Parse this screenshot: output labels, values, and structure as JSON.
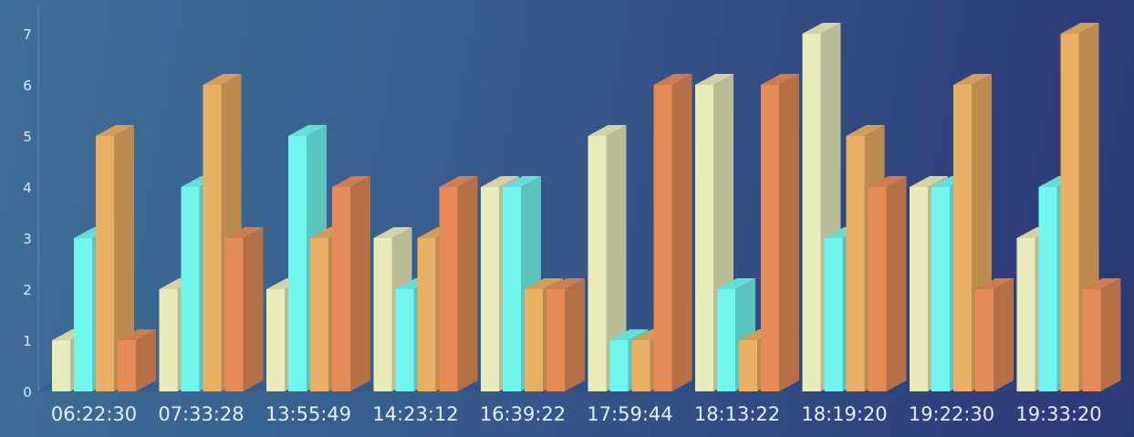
{
  "chart_data": {
    "type": "bar",
    "categories": [
      "06:22:30",
      "07:33:28",
      "13:55:49",
      "14:23:12",
      "16:39:22",
      "17:59:44",
      "18:13:22",
      "18:19:20",
      "19:22:30",
      "19:33:20"
    ],
    "series": [
      {
        "values": [
          1,
          2,
          2,
          3,
          4,
          5,
          6,
          7,
          4,
          3
        ],
        "color": "#e9ebbb"
      },
      {
        "values": [
          3,
          4,
          5,
          2,
          4,
          1,
          2,
          3,
          4,
          4
        ],
        "color": "#71f6ee"
      },
      {
        "values": [
          5,
          6,
          3,
          3,
          2,
          1,
          1,
          5,
          6,
          7
        ],
        "color": "#e9b063"
      },
      {
        "values": [
          1,
          3,
          4,
          4,
          2,
          6,
          6,
          4,
          2,
          2
        ],
        "color": "#e58b57"
      }
    ],
    "ylim": [
      0,
      7
    ],
    "yticks": [
      0,
      1,
      2,
      3,
      4,
      5,
      6,
      7
    ],
    "style": "3d",
    "grid": false,
    "legend": false
  }
}
